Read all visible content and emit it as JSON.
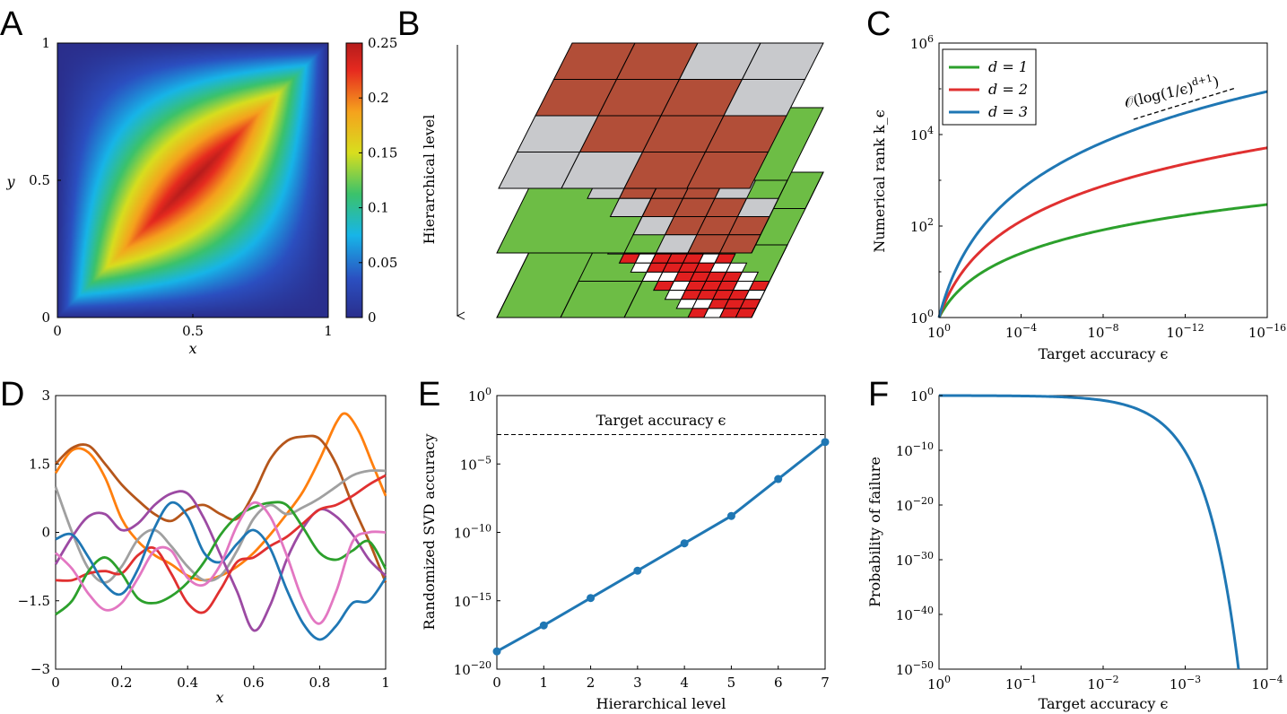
{
  "panels": {
    "A": {
      "letter": "A"
    },
    "B": {
      "letter": "B"
    },
    "C": {
      "letter": "C"
    },
    "D": {
      "letter": "D"
    },
    "E": {
      "letter": "E"
    },
    "F": {
      "letter": "F"
    }
  },
  "colors": {
    "green": "#2ca02c",
    "red": "#e03030",
    "blue": "#1f77b4",
    "orange": "#ff7f0e",
    "brown": "#b5561b",
    "gray": "#a0a0a0",
    "purple": "#9c4aa3",
    "pink": "#e377c2",
    "cell_red": "#b24e38",
    "cell_gray": "#c8c9cc",
    "cell_green": "#6dbd45",
    "cell_darkgreen": "#6a9f4e",
    "cell_bright_red": "#e11f1f"
  },
  "chart_data": [
    {
      "panel": "A",
      "type": "heatmap",
      "title": "",
      "xlabel": "x",
      "ylabel": "y",
      "xlim": [
        0,
        1
      ],
      "ylim": [
        0,
        1
      ],
      "x_ticks": [
        "0",
        "0.5",
        "1"
      ],
      "y_ticks": [
        "0",
        "0.5",
        "1"
      ],
      "colorbar": {
        "min": 0,
        "max": 0.25,
        "ticks": [
          "0",
          "0.05",
          "0.1",
          "0.15",
          "0.2",
          "0.25"
        ]
      },
      "function": "min(x,y)*(1-max(x,y)) style Green's function peaking at 0.25 on the diagonal"
    },
    {
      "panel": "B",
      "type": "diagram",
      "axis_label": "Hierarchical level",
      "levels": [
        {
          "name": "level-top",
          "grid": 4,
          "cells": "rrgg rrrg grrr ggrr"
        },
        {
          "name": "level-middle",
          "grid": 8
        },
        {
          "name": "level-bottom",
          "grid": 16
        }
      ]
    },
    {
      "panel": "C",
      "type": "line",
      "xlabel": "Target accuracy ϵ",
      "ylabel": "Numerical rank k_ϵ",
      "x_scale": "log-exponent",
      "xlim": [
        0,
        16
      ],
      "ylim": [
        0,
        6
      ],
      "x_ticks": [
        {
          "base": "10",
          "exp": "0",
          "value": 0
        },
        {
          "base": "10",
          "exp": "−4",
          "value": 4
        },
        {
          "base": "10",
          "exp": "−8",
          "value": 8
        },
        {
          "base": "10",
          "exp": "−12",
          "value": 12
        },
        {
          "base": "10",
          "exp": "−16",
          "value": 16
        }
      ],
      "y_ticks": [
        {
          "base": "10",
          "exp": "0",
          "value": 0
        },
        {
          "base": "10",
          "exp": "2",
          "value": 2
        },
        {
          "base": "10",
          "exp": "4",
          "value": 4
        },
        {
          "base": "10",
          "exp": "6",
          "value": 6
        }
      ],
      "legend": [
        {
          "label": "d = 1",
          "color": "#2ca02c"
        },
        {
          "label": "d = 2",
          "color": "#e03030"
        },
        {
          "label": "d = 3",
          "color": "#1f77b4"
        }
      ],
      "legend_position": "top-left",
      "series": [
        {
          "name": "d = 1",
          "exponent": 2,
          "log10_at_16": 2.47
        },
        {
          "name": "d = 2",
          "exponent": 3,
          "log10_at_16": 3.71
        },
        {
          "name": "d = 3",
          "exponent": 4,
          "log10_at_16": 4.94
        }
      ],
      "annotation": {
        "text": "𝒪(log(1/ϵ)",
        "sup": "d+1",
        "close": ")"
      }
    },
    {
      "panel": "D",
      "type": "line",
      "xlabel": "x",
      "ylabel": "",
      "xlim": [
        0,
        1
      ],
      "ylim": [
        -3,
        3
      ],
      "x_ticks": [
        "0",
        "0.2",
        "0.4",
        "0.6",
        "0.8",
        "1"
      ],
      "y_ticks": [
        "−3",
        "−1.5",
        "0",
        "1.5",
        "3"
      ],
      "series": [
        {
          "name": "orange",
          "color": "#ff7f0e",
          "x": [
            0,
            0.05,
            0.1,
            0.15,
            0.2,
            0.25,
            0.3,
            0.35,
            0.4,
            0.45,
            0.5,
            0.55,
            0.6,
            0.65,
            0.7,
            0.75,
            0.8,
            0.85,
            0.88,
            0.92,
            0.96,
            1.0
          ],
          "y": [
            1.3,
            1.8,
            1.75,
            1.2,
            0.3,
            -0.2,
            -0.5,
            -0.7,
            -0.95,
            -1.05,
            -0.95,
            -0.75,
            -0.45,
            -0.05,
            0.4,
            0.9,
            1.6,
            2.4,
            2.6,
            2.2,
            1.5,
            0.8
          ]
        },
        {
          "name": "brown",
          "color": "#b5561b",
          "x": [
            0,
            0.05,
            0.1,
            0.15,
            0.2,
            0.25,
            0.3,
            0.35,
            0.4,
            0.45,
            0.5,
            0.55,
            0.6,
            0.65,
            0.7,
            0.75,
            0.8,
            0.85,
            0.9,
            0.95,
            1.0
          ],
          "y": [
            1.5,
            1.85,
            1.9,
            1.5,
            1.05,
            0.7,
            0.4,
            0.25,
            0.5,
            0.6,
            0.4,
            0.3,
            0.85,
            1.6,
            2.0,
            2.1,
            2.05,
            1.5,
            0.6,
            -0.2,
            -1.1
          ]
        },
        {
          "name": "gray",
          "color": "#a0a0a0",
          "x": [
            0,
            0.05,
            0.1,
            0.15,
            0.2,
            0.25,
            0.3,
            0.35,
            0.4,
            0.45,
            0.5,
            0.55,
            0.6,
            0.65,
            0.7,
            0.75,
            0.8,
            0.85,
            0.9,
            0.95,
            1.0
          ],
          "y": [
            1.0,
            0.0,
            -0.8,
            -1.1,
            -0.75,
            -0.15,
            0.05,
            -0.3,
            -0.75,
            -1.05,
            -0.95,
            -0.4,
            0.3,
            0.6,
            0.4,
            0.55,
            0.75,
            1.0,
            1.25,
            1.35,
            1.35
          ]
        },
        {
          "name": "purple",
          "color": "#9c4aa3",
          "x": [
            0,
            0.05,
            0.1,
            0.15,
            0.2,
            0.25,
            0.3,
            0.35,
            0.4,
            0.45,
            0.5,
            0.55,
            0.6,
            0.65,
            0.7,
            0.75,
            0.8,
            0.85,
            0.9,
            0.95,
            1.0
          ],
          "y": [
            -0.7,
            -0.1,
            0.35,
            0.4,
            0.05,
            0.2,
            0.6,
            0.85,
            0.85,
            0.3,
            -0.5,
            -1.3,
            -2.15,
            -1.6,
            -0.6,
            0.1,
            0.5,
            0.35,
            -0.05,
            -0.6,
            -0.95
          ]
        },
        {
          "name": "red",
          "color": "#e03030",
          "x": [
            0,
            0.05,
            0.1,
            0.15,
            0.2,
            0.25,
            0.3,
            0.35,
            0.4,
            0.45,
            0.5,
            0.55,
            0.6,
            0.65,
            0.7,
            0.75,
            0.8,
            0.85,
            0.9,
            0.95,
            1.0
          ],
          "y": [
            -1.05,
            -1.05,
            -0.9,
            -0.85,
            -0.9,
            -0.5,
            -0.35,
            -0.9,
            -1.55,
            -1.75,
            -1.25,
            -0.65,
            -0.55,
            -0.3,
            -0.1,
            0.2,
            0.5,
            0.6,
            0.8,
            1.05,
            1.25
          ]
        },
        {
          "name": "green",
          "color": "#2ca02c",
          "x": [
            0,
            0.05,
            0.1,
            0.15,
            0.2,
            0.25,
            0.3,
            0.35,
            0.4,
            0.45,
            0.5,
            0.55,
            0.6,
            0.65,
            0.7,
            0.75,
            0.8,
            0.85,
            0.9,
            0.95,
            1.0
          ],
          "y": [
            -1.8,
            -1.5,
            -0.85,
            -0.55,
            -0.9,
            -1.45,
            -1.55,
            -1.4,
            -1.1,
            -0.65,
            -0.05,
            0.35,
            0.55,
            0.65,
            0.6,
            0.1,
            -0.45,
            -0.6,
            -0.4,
            -0.2,
            -0.8
          ]
        },
        {
          "name": "blue",
          "color": "#1f77b4",
          "x": [
            0,
            0.05,
            0.1,
            0.15,
            0.2,
            0.25,
            0.3,
            0.35,
            0.4,
            0.45,
            0.5,
            0.55,
            0.6,
            0.65,
            0.7,
            0.75,
            0.8,
            0.85,
            0.9,
            0.95,
            1.0
          ],
          "y": [
            -0.15,
            -0.05,
            -0.55,
            -1.15,
            -1.35,
            -0.8,
            0.1,
            0.65,
            0.35,
            -0.45,
            -0.65,
            -0.25,
            0.05,
            -0.35,
            -1.25,
            -2.0,
            -2.35,
            -2.05,
            -1.55,
            -1.5,
            -1.0
          ]
        },
        {
          "name": "pink",
          "color": "#e377c2",
          "x": [
            0,
            0.05,
            0.1,
            0.15,
            0.2,
            0.25,
            0.3,
            0.35,
            0.4,
            0.45,
            0.5,
            0.55,
            0.6,
            0.65,
            0.7,
            0.75,
            0.8,
            0.85,
            0.9,
            0.95,
            1.0
          ],
          "y": [
            -0.45,
            -0.8,
            -1.35,
            -1.7,
            -1.55,
            -1.0,
            -0.4,
            -0.4,
            -1.0,
            -1.15,
            -0.7,
            0.15,
            0.65,
            0.35,
            -0.5,
            -1.5,
            -2.0,
            -1.3,
            -0.2,
            0.0,
            0.0
          ]
        }
      ]
    },
    {
      "panel": "E",
      "type": "line",
      "xlabel": "Hierarchical level",
      "ylabel": "Randomized SVD accuracy",
      "xlim": [
        0,
        7
      ],
      "ylim": [
        -20,
        0
      ],
      "x_ticks": [
        "0",
        "1",
        "2",
        "3",
        "4",
        "5",
        "6",
        "7"
      ],
      "y_ticks": [
        {
          "base": "10",
          "exp": "0",
          "value": 0
        },
        {
          "base": "10",
          "exp": "−5",
          "value": -5
        },
        {
          "base": "10",
          "exp": "−10",
          "value": -10
        },
        {
          "base": "10",
          "exp": "−15",
          "value": -15
        },
        {
          "base": "10",
          "exp": "−20",
          "value": -20
        }
      ],
      "target_line": {
        "label": "Target accuracy ϵ",
        "log10_value": -3.4
      },
      "series": [
        {
          "name": "accuracy",
          "color": "#1f77b4",
          "x": [
            0,
            1,
            2,
            3,
            4,
            5,
            6,
            7
          ],
          "log10_y": [
            -18.7,
            -16.8,
            -14.8,
            -12.8,
            -10.8,
            -8.8,
            -6.1,
            -3.4
          ]
        }
      ]
    },
    {
      "panel": "F",
      "type": "line",
      "xlabel": "Target accuracy ϵ",
      "ylabel": "Probability of failure",
      "xlim": [
        0,
        4
      ],
      "ylim": [
        -50,
        0
      ],
      "x_ticks": [
        {
          "base": "10",
          "exp": "0",
          "value": 0
        },
        {
          "base": "10",
          "exp": "−1",
          "value": 1
        },
        {
          "base": "10",
          "exp": "−2",
          "value": 2
        },
        {
          "base": "10",
          "exp": "−3",
          "value": 3
        },
        {
          "base": "10",
          "exp": "−4",
          "value": 4
        }
      ],
      "y_ticks": [
        {
          "base": "10",
          "exp": "0",
          "value": 0
        },
        {
          "base": "10",
          "exp": "−10",
          "value": -10
        },
        {
          "base": "10",
          "exp": "−20",
          "value": -20
        },
        {
          "base": "10",
          "exp": "−30",
          "value": -30
        },
        {
          "base": "10",
          "exp": "−40",
          "value": -40
        },
        {
          "base": "10",
          "exp": "−50",
          "value": -50
        }
      ],
      "series": [
        {
          "name": "failure",
          "color": "#1f77b4",
          "model": "log10 p = -k * 10^(1.06 * t)",
          "endpoint_t": 3.65
        }
      ]
    }
  ]
}
